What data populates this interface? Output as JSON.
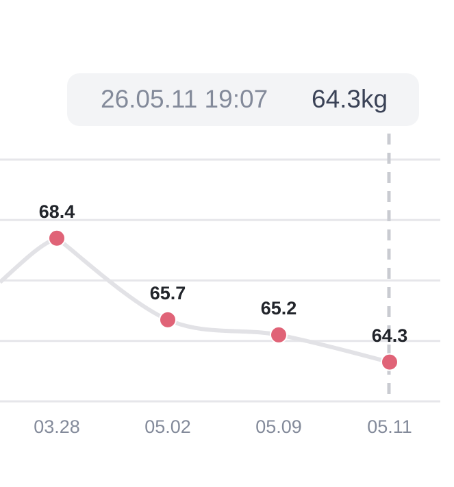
{
  "chart_data": {
    "type": "line",
    "categories": [
      "03.28",
      "05.02",
      "05.09",
      "05.11"
    ],
    "series": [
      {
        "values": [
          68.4,
          65.7,
          65.2,
          64.3
        ],
        "color": "#e06377"
      }
    ],
    "ylim": [
      63,
      71
    ],
    "yticks": [
      63,
      65,
      67,
      69,
      71
    ],
    "grid": true,
    "tooltip": {
      "time": "26.05.11 19:07",
      "value_label": "64.3kg"
    }
  }
}
